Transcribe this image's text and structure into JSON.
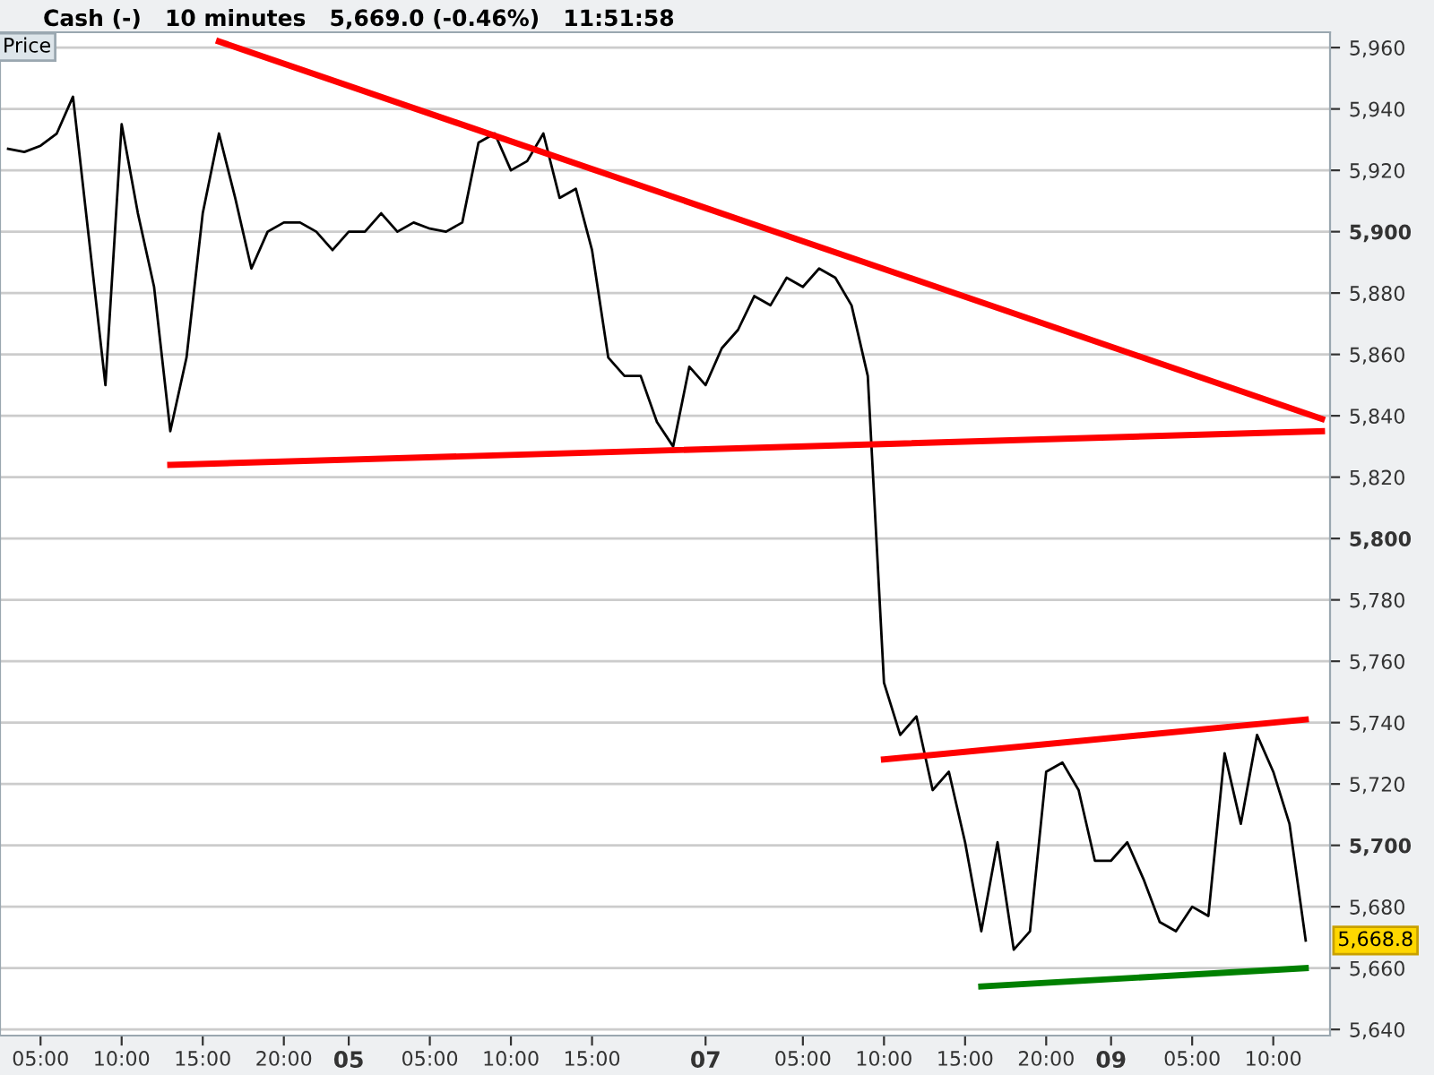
{
  "chart_data": {
    "type": "line",
    "title": "Cash (-)   10 minutes   5,669.0 (-0.46%)   11:51:58",
    "annotations": [
      "Price",
      "5,668.8"
    ],
    "categories": [
      null,
      null,
      "05:00",
      null,
      null,
      null,
      null,
      "10:00",
      null,
      null,
      null,
      null,
      "15:00",
      null,
      null,
      null,
      null,
      "20:00",
      null,
      null,
      null,
      "05",
      null,
      null,
      null,
      null,
      "05:00",
      null,
      null,
      null,
      null,
      "10:00",
      null,
      null,
      null,
      null,
      "15:00",
      null,
      null,
      null,
      null,
      null,
      null,
      "07",
      null,
      null,
      null,
      null,
      null,
      "05:00",
      null,
      null,
      null,
      null,
      "10:00",
      null,
      null,
      null,
      null,
      "15:00",
      null,
      null,
      null,
      null,
      "20:00",
      null,
      null,
      null,
      "09",
      null,
      null,
      null,
      null,
      "05:00",
      null,
      null,
      null,
      null,
      "10:00",
      null,
      null,
      null
    ],
    "series": [
      {
        "color": "#000000",
        "values": [
          5927,
          5926,
          5928,
          5932,
          5944,
          5897,
          5850,
          5935,
          5906,
          5882,
          5835,
          5859,
          5906,
          5932,
          5911,
          5888,
          5900,
          5903,
          5903,
          5900,
          5894,
          5900,
          5900,
          5906,
          5900,
          5903,
          5901,
          5900,
          5903,
          5929,
          5932,
          5920,
          5923,
          5932,
          5911,
          5914,
          5894,
          5859,
          5853,
          5853,
          5838,
          5830,
          5856,
          5850,
          5862,
          5868,
          5879,
          5876,
          5885,
          5882,
          5888,
          5885,
          5876,
          5853,
          5753,
          5736,
          5742,
          5718,
          5724,
          5701,
          5672,
          5701,
          5666,
          5672,
          5724,
          5727,
          5718,
          5695,
          5695,
          5701,
          5689,
          5675,
          5672,
          5680,
          5677,
          5730,
          5707,
          5736,
          5724,
          5707,
          5669,
          null
        ]
      },
      {
        "color": "#ff0000",
        "values": [
          null,
          null,
          null,
          null,
          null,
          null,
          null,
          null,
          null,
          null,
          null,
          null,
          null,
          5962,
          null,
          null,
          null,
          null,
          null,
          null,
          null,
          null,
          null,
          null,
          null,
          null,
          null,
          null,
          null,
          null,
          null,
          null,
          null,
          null,
          null,
          null,
          null,
          null,
          null,
          null,
          null,
          null,
          null,
          null,
          null,
          null,
          null,
          null,
          null,
          null,
          null,
          null,
          null,
          null,
          null,
          null,
          null,
          null,
          null,
          null,
          null,
          null,
          null,
          null,
          null,
          null,
          null,
          null,
          null,
          null,
          null,
          null,
          null,
          null,
          null,
          null,
          null,
          null,
          null,
          null,
          null,
          5839
        ]
      },
      {
        "color": "#ff0000",
        "values": [
          null,
          null,
          null,
          null,
          null,
          null,
          null,
          null,
          null,
          null,
          5824,
          null,
          null,
          null,
          null,
          null,
          null,
          null,
          null,
          null,
          null,
          null,
          null,
          null,
          null,
          null,
          null,
          null,
          null,
          null,
          null,
          null,
          null,
          null,
          null,
          null,
          null,
          null,
          null,
          null,
          null,
          null,
          null,
          null,
          null,
          null,
          null,
          null,
          null,
          null,
          null,
          null,
          null,
          null,
          null,
          null,
          null,
          null,
          null,
          null,
          null,
          null,
          null,
          null,
          null,
          null,
          null,
          null,
          null,
          null,
          null,
          null,
          null,
          null,
          null,
          null,
          null,
          null,
          null,
          null,
          null,
          5835
        ]
      },
      {
        "color": "#ff0000",
        "values": [
          null,
          null,
          null,
          null,
          null,
          null,
          null,
          null,
          null,
          null,
          null,
          null,
          null,
          null,
          null,
          null,
          null,
          null,
          null,
          null,
          null,
          null,
          null,
          null,
          null,
          null,
          null,
          null,
          null,
          null,
          null,
          null,
          null,
          null,
          null,
          null,
          null,
          null,
          null,
          null,
          null,
          null,
          null,
          null,
          null,
          null,
          null,
          null,
          null,
          null,
          null,
          null,
          null,
          null,
          5728,
          null,
          null,
          null,
          null,
          null,
          null,
          null,
          null,
          null,
          null,
          null,
          null,
          null,
          null,
          null,
          null,
          null,
          null,
          null,
          null,
          null,
          null,
          null,
          null,
          null,
          5741,
          null
        ]
      },
      {
        "color": "#008000",
        "values": [
          null,
          null,
          null,
          null,
          null,
          null,
          null,
          null,
          null,
          null,
          null,
          null,
          null,
          null,
          null,
          null,
          null,
          null,
          null,
          null,
          null,
          null,
          null,
          null,
          null,
          null,
          null,
          null,
          null,
          null,
          null,
          null,
          null,
          null,
          null,
          null,
          null,
          null,
          null,
          null,
          null,
          null,
          null,
          null,
          null,
          null,
          null,
          null,
          null,
          null,
          null,
          null,
          null,
          null,
          null,
          null,
          null,
          null,
          null,
          null,
          5654,
          null,
          null,
          null,
          null,
          null,
          null,
          null,
          null,
          null,
          null,
          null,
          null,
          null,
          null,
          null,
          null,
          null,
          null,
          null,
          5660,
          null
        ]
      }
    ],
    "ylim": [
      5638,
      5965
    ],
    "yticks": [
      {
        "value": 5640,
        "label": "5,640"
      },
      {
        "value": 5660,
        "label": "5,660"
      },
      {
        "value": 5680,
        "label": "5,680"
      },
      {
        "value": 5700,
        "label": "5,700"
      },
      {
        "value": 5720,
        "label": "5,720"
      },
      {
        "value": 5740,
        "label": "5,740"
      },
      {
        "value": 5760,
        "label": "5,760"
      },
      {
        "value": 5780,
        "label": "5,780"
      },
      {
        "value": 5800,
        "label": "5,800"
      },
      {
        "value": 5820,
        "label": "5,820"
      },
      {
        "value": 5840,
        "label": "5,840"
      },
      {
        "value": 5860,
        "label": "5,860"
      },
      {
        "value": 5880,
        "label": "5,880"
      },
      {
        "value": 5900,
        "label": "5,900"
      },
      {
        "value": 5920,
        "label": "5,920"
      },
      {
        "value": 5940,
        "label": "5,940"
      },
      {
        "value": 5960,
        "label": "5,960"
      }
    ],
    "grid": "y",
    "line_style": "solid"
  }
}
